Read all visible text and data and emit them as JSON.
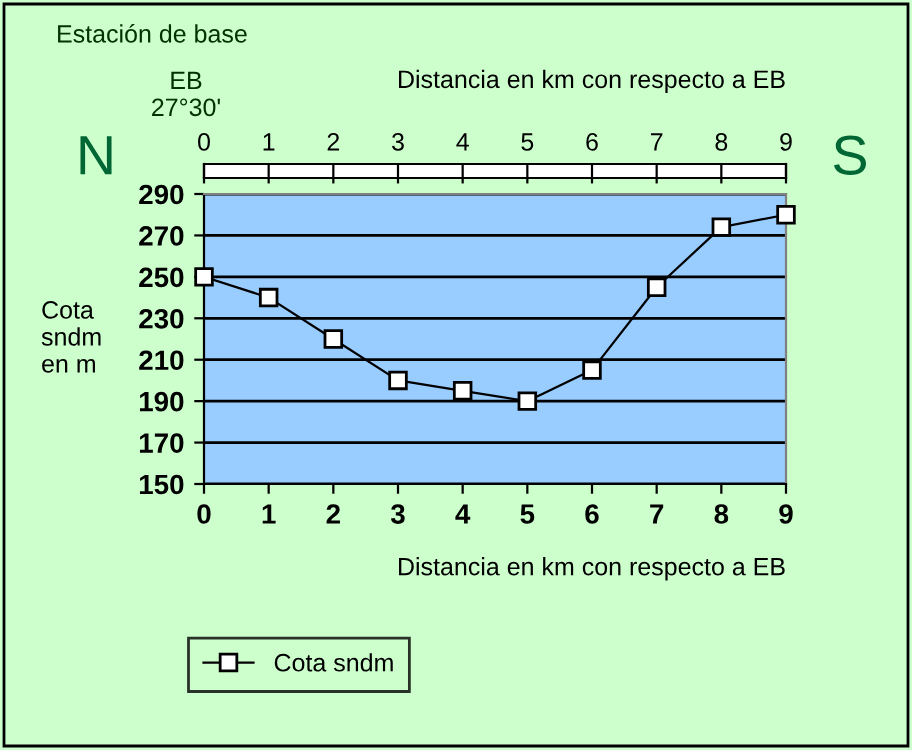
{
  "chart_data": {
    "type": "line",
    "x": [
      0,
      1,
      2,
      3,
      4,
      5,
      6,
      7,
      8,
      9
    ],
    "series": [
      {
        "name": "Cota sndm",
        "color": "#000000",
        "values": [
          250,
          240,
          220,
          200,
          195,
          190,
          205,
          245,
          274,
          280
        ]
      }
    ],
    "xlim": [
      0,
      9
    ],
    "xticks": [
      0,
      1,
      2,
      3,
      4,
      5,
      6,
      7,
      8,
      9
    ],
    "ylim": [
      150,
      290
    ],
    "yticks": [
      150,
      170,
      190,
      210,
      230,
      250,
      270,
      290
    ],
    "x2lim": [
      0,
      9
    ],
    "x2ticks": [
      0,
      1,
      2,
      3,
      4,
      5,
      6,
      7,
      8,
      9
    ],
    "xlabel": "Distancia en km con respecto a EB",
    "x2label": "Distancia en km con respecto a EB",
    "ylabel": "Cota\nsndm\nen m",
    "annotations": [
      "Estación de base",
      "EB\n27°30'",
      "N",
      "S"
    ],
    "grid": "y",
    "legend": "bottom left",
    "marker": "square",
    "line_style": "solid"
  }
}
